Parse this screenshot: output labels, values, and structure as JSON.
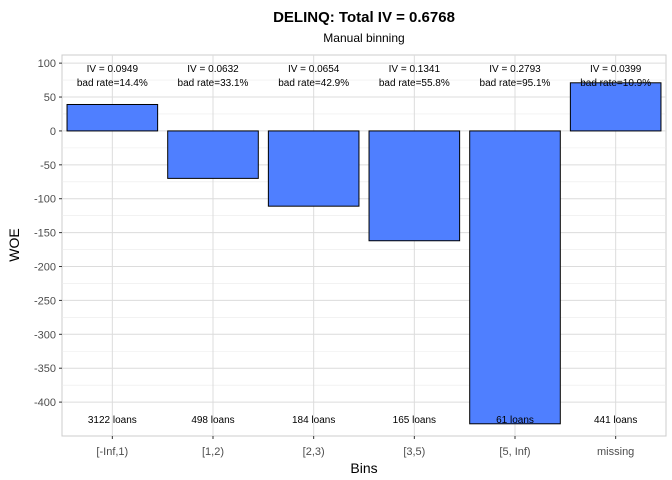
{
  "chart_data": {
    "type": "bar",
    "title": "DELINQ: Total IV = 0.6768",
    "subtitle": "Manual binning",
    "xlabel": "Bins",
    "ylabel": "WOE",
    "categories": [
      "[-Inf,1)",
      "[1,2)",
      "[2,3)",
      "[3,5)",
      "[5, Inf)",
      "missing"
    ],
    "values": [
      39,
      -70,
      -111,
      -162,
      -432,
      71
    ],
    "iv_labels": [
      "IV = 0.0949",
      "IV = 0.0632",
      "IV = 0.0654",
      "IV = 0.1341",
      "IV = 0.2793",
      "IV = 0.0399"
    ],
    "bad_rate_labels": [
      "bad rate=14.4%",
      "bad rate=33.1%",
      "bad rate=42.9%",
      "bad rate=55.8%",
      "bad rate=95.1%",
      "bad rate=10.9%"
    ],
    "count_labels": [
      "3122 loans",
      "498 loans",
      "184 loans",
      "165 loans",
      "61 loans",
      "441 loans"
    ],
    "yticks": [
      100,
      50,
      0,
      -50,
      -100,
      -150,
      -200,
      -250,
      -300,
      -350,
      -400
    ],
    "ytick_labels": [
      "100",
      "50",
      "0",
      "-50",
      "-100",
      "-150",
      "-200",
      "-250",
      "-300",
      "-350",
      "-400"
    ],
    "ylim": [
      -450,
      112
    ],
    "grid": true,
    "bar_color": "#4f7fff",
    "bar_outline": "#000000"
  }
}
